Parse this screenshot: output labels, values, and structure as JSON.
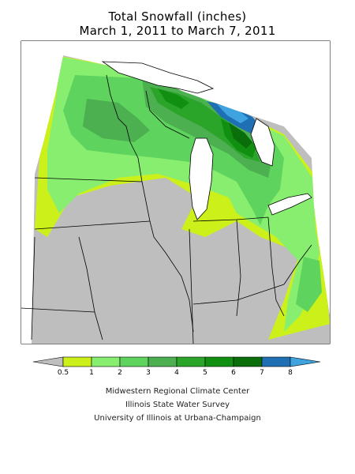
{
  "title": {
    "line1": "Total Snowfall (inches)",
    "line2": "March 1, 2011 to March 7, 2011"
  },
  "legend": {
    "bins": [
      {
        "min": 0.5,
        "max": 1,
        "color": "#ccf01a"
      },
      {
        "min": 1,
        "max": 2,
        "color": "#88ee70"
      },
      {
        "min": 2,
        "max": 3,
        "color": "#5ed45e"
      },
      {
        "min": 3,
        "max": 4,
        "color": "#4caf50"
      },
      {
        "min": 4,
        "max": 5,
        "color": "#2aa52a"
      },
      {
        "min": 5,
        "max": 6,
        "color": "#118f11"
      },
      {
        "min": 6,
        "max": 7,
        "color": "#0a6e0a"
      },
      {
        "min": 7,
        "max": 8,
        "color": "#1f6fb4"
      },
      {
        "min": 8,
        "max": null,
        "color": "#3fa3e0"
      }
    ],
    "below_color": "#bebebe",
    "labels": [
      "0.5",
      "1",
      "2",
      "3",
      "4",
      "5",
      "6",
      "7",
      "8"
    ]
  },
  "credits": {
    "line1": "Midwestern Regional Climate Center",
    "line2": "Illinois State Water Survey",
    "line3": "University of Illinois at Urbana-Champaign"
  },
  "colors": {
    "no_snow": "#bebebe",
    "boundary": "#000000",
    "water": "#ffffff"
  }
}
